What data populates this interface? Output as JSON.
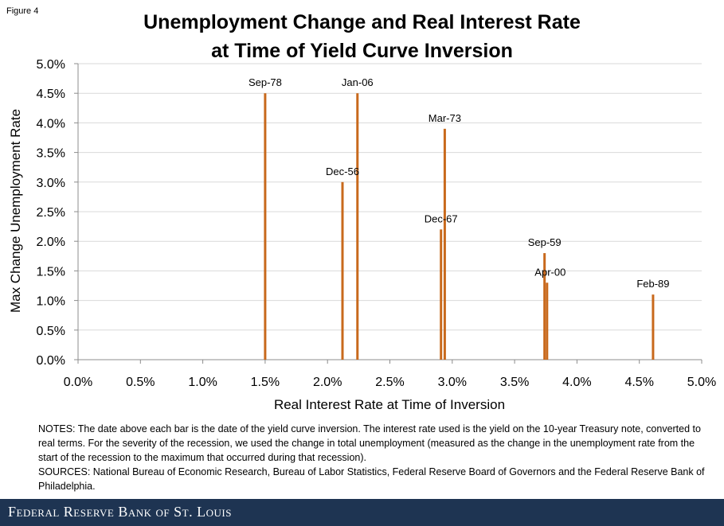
{
  "figure_label": "Figure 4",
  "title_line1": "Unemployment Change and Real Interest Rate",
  "title_line2": "at Time of Yield Curve Inversion",
  "notes": "NOTES: The date above each bar is the date of the yield curve inversion. The interest rate used is the yield on the 10-year Treasury note, converted to real terms. For the severity of the recession, we used the change in total unemployment (measured as the change in the unemployment rate from the start of the recession to the maximum that occurred during that recession).",
  "sources": "SOURCES: National Bureau of Economic Research, Bureau of Labor Statistics, Federal Reserve Board of Governors and the Federal Reserve Bank of Philadelphia.",
  "footer": "Federal Reserve Bank of St. Louis",
  "chart_data": {
    "type": "bar",
    "xlabel": "Real Interest Rate at Time of Inversion",
    "ylabel": "Max Change Unemployment Rate",
    "xlim": [
      0,
      5
    ],
    "ylim": [
      0,
      5
    ],
    "x_ticks": [
      "0.0%",
      "0.5%",
      "1.0%",
      "1.5%",
      "2.0%",
      "2.5%",
      "3.0%",
      "3.5%",
      "4.0%",
      "4.5%",
      "5.0%"
    ],
    "y_ticks": [
      "0.0%",
      "0.5%",
      "1.0%",
      "1.5%",
      "2.0%",
      "2.5%",
      "3.0%",
      "3.5%",
      "4.0%",
      "4.5%",
      "5.0%"
    ],
    "grid": "horizontal",
    "bar_color": "#c8691c",
    "points": [
      {
        "label": "Sep-78",
        "x": 1.5,
        "y": 4.5
      },
      {
        "label": "Dec-56",
        "x": 2.12,
        "y": 3.0
      },
      {
        "label": "Jan-06",
        "x": 2.24,
        "y": 4.5
      },
      {
        "label": "Dec-67",
        "x": 2.91,
        "y": 2.2
      },
      {
        "label": "Mar-73",
        "x": 2.94,
        "y": 3.9
      },
      {
        "label": "Sep-59",
        "x": 3.74,
        "y": 1.8
      },
      {
        "label": "Apr-00",
        "x": 3.76,
        "y": 1.3
      },
      {
        "label": "Feb-89",
        "x": 4.61,
        "y": 1.1
      }
    ]
  }
}
